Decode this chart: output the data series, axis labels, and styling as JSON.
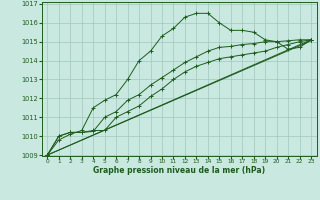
{
  "title": "Graphe pression niveau de la mer (hPa)",
  "xlabel_ticks": [
    0,
    1,
    2,
    3,
    4,
    5,
    6,
    7,
    8,
    9,
    10,
    11,
    12,
    13,
    14,
    15,
    16,
    17,
    18,
    19,
    20,
    21,
    22,
    23
  ],
  "ylim": [
    1009,
    1017
  ],
  "yticks": [
    1009,
    1010,
    1011,
    1012,
    1013,
    1014,
    1015,
    1016,
    1017
  ],
  "bg_color": "#c8e8e0",
  "grid_color": "#a0c8be",
  "line_color": "#1e5c1e",
  "series1_straight": {
    "x": [
      0,
      23
    ],
    "y": [
      1009.0,
      1015.1
    ]
  },
  "series2_straight": {
    "x": [
      0,
      23
    ],
    "y": [
      1009.0,
      1015.1
    ]
  },
  "series3_main": {
    "x": [
      0,
      1,
      2,
      3,
      4,
      5,
      6,
      7,
      8,
      9,
      10,
      11,
      12,
      13,
      14,
      15,
      16,
      17,
      18,
      19,
      20,
      21,
      22,
      23
    ],
    "y": [
      1009.0,
      1009.8,
      1010.1,
      1010.3,
      1011.5,
      1011.9,
      1012.2,
      1013.0,
      1014.0,
      1014.5,
      1015.3,
      1015.7,
      1016.3,
      1016.5,
      1016.5,
      1016.0,
      1015.6,
      1015.6,
      1015.5,
      1015.1,
      1015.0,
      1014.6,
      1014.7,
      1015.1
    ]
  },
  "series4_lower": {
    "x": [
      0,
      1,
      2,
      3,
      4,
      5,
      6,
      7,
      8,
      9,
      10,
      11,
      12,
      13,
      14,
      15,
      16,
      17,
      18,
      19,
      20,
      21,
      22,
      23
    ],
    "y": [
      1009.0,
      1010.0,
      1010.2,
      1010.2,
      1010.3,
      1010.3,
      1011.0,
      1011.3,
      1011.6,
      1012.1,
      1012.5,
      1013.0,
      1013.4,
      1013.7,
      1013.9,
      1014.1,
      1014.2,
      1014.3,
      1014.4,
      1014.5,
      1014.7,
      1014.85,
      1015.0,
      1015.1
    ]
  },
  "series5_mid": {
    "x": [
      0,
      1,
      2,
      3,
      4,
      5,
      6,
      7,
      8,
      9,
      10,
      11,
      12,
      13,
      14,
      15,
      16,
      17,
      18,
      19,
      20,
      21,
      22,
      23
    ],
    "y": [
      1009.0,
      1010.0,
      1010.2,
      1010.2,
      1010.25,
      1011.0,
      1011.3,
      1011.9,
      1012.2,
      1012.7,
      1013.1,
      1013.5,
      1013.9,
      1014.2,
      1014.5,
      1014.7,
      1014.75,
      1014.85,
      1014.9,
      1015.0,
      1015.0,
      1015.05,
      1015.1,
      1015.1
    ]
  }
}
